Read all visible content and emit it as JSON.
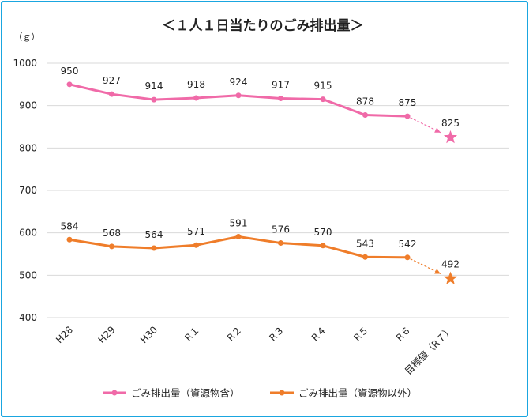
{
  "chart_data": {
    "type": "line",
    "title": "＜１人１日当たりのごみ排出量＞",
    "ylabel": "（ｇ）",
    "ylim": [
      400,
      1000
    ],
    "yticks": [
      400,
      500,
      600,
      700,
      800,
      900,
      1000
    ],
    "categories": [
      "H28",
      "H29",
      "H30",
      "R１",
      "R２",
      "R３",
      "R４",
      "R５",
      "R６",
      "目標値（R７）"
    ],
    "series": [
      {
        "name": "ごみ排出量（資源物含）",
        "color": "#f06aa8",
        "values": [
          950,
          927,
          914,
          918,
          924,
          917,
          915,
          878,
          875,
          null
        ],
        "target": 825
      },
      {
        "name": "ごみ排出量（資源物以外）",
        "color": "#ef7d2a",
        "values": [
          584,
          568,
          564,
          571,
          591,
          576,
          570,
          543,
          542,
          null
        ],
        "target": 492
      }
    ],
    "legend_position": "bottom",
    "grid": true
  }
}
